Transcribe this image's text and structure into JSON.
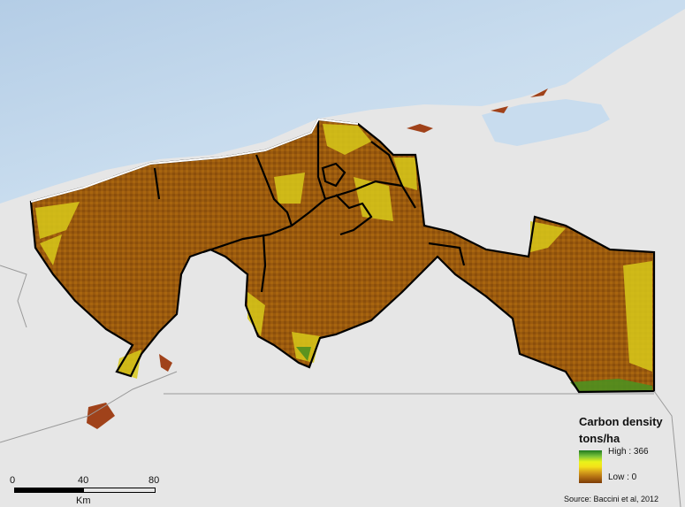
{
  "legend": {
    "title": "Carbon density",
    "unit": "tons/ha",
    "high_label": "High : 366",
    "low_label": "Low : 0",
    "colors": [
      "#1f7a1f",
      "#7bc43a",
      "#e9f31a",
      "#d9a51b",
      "#7c3c07"
    ]
  },
  "scale": {
    "ticks": [
      "0",
      "40",
      "80"
    ],
    "unit": "Km"
  },
  "source": "Source: Baccini et al, 2012",
  "colors": {
    "ocean": "#c9dced",
    "land": "#e6e6e6",
    "carbon_mid": "#9a5a0e",
    "carbon_low": "#e8e01a",
    "boundary": "#000000"
  }
}
